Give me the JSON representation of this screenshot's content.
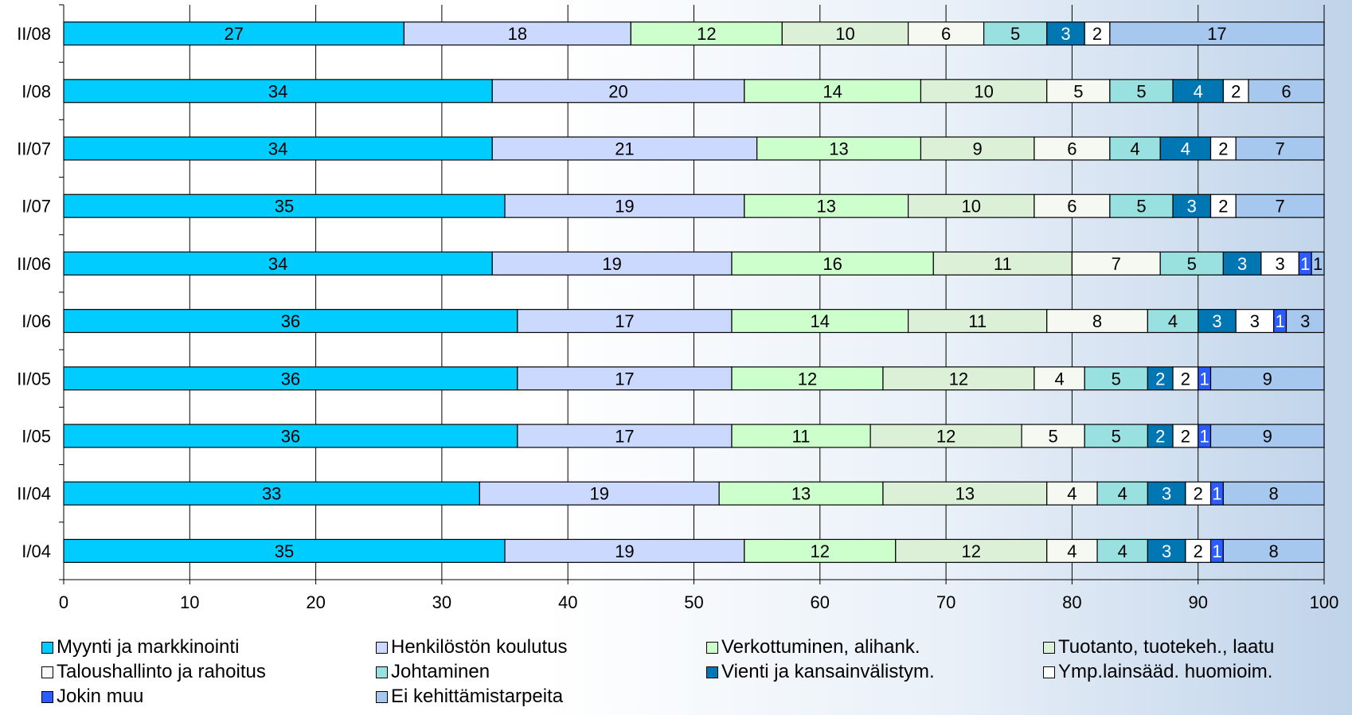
{
  "chart_data": {
    "type": "bar",
    "orientation": "horizontal",
    "stacked": true,
    "categories": [
      "I/04",
      "II/04",
      "I/05",
      "II/05",
      "I/06",
      "II/06",
      "I/07",
      "II/07",
      "I/08",
      "II/08"
    ],
    "xlim": [
      0,
      100
    ],
    "xticks": [
      "0",
      "10",
      "20",
      "30",
      "40",
      "50",
      "60",
      "70",
      "80",
      "90",
      "100"
    ],
    "grid": "vertical",
    "legend_position": "bottom",
    "series": [
      {
        "name": "Myynti ja markkinointi",
        "color": "#00ccff",
        "values": [
          35,
          33,
          36,
          36,
          36,
          34,
          35,
          34,
          34,
          27
        ],
        "labels": [
          "35",
          "33",
          "36",
          "36",
          "36",
          "34",
          "35",
          "34",
          "34",
          "27"
        ]
      },
      {
        "name": "Henkilöstön koulutus",
        "color": "#ccd9ff",
        "values": [
          19,
          19,
          17,
          17,
          17,
          19,
          19,
          21,
          20,
          18
        ],
        "labels": [
          "19",
          "19",
          "17",
          "17",
          "17",
          "19",
          "19",
          "21",
          "20",
          "18"
        ]
      },
      {
        "name": "Verkottuminen, alihank.",
        "color": "#ccffcc",
        "values": [
          12,
          13,
          11,
          12,
          14,
          16,
          13,
          13,
          14,
          12
        ],
        "labels": [
          "12",
          "13",
          "11",
          "12",
          "14",
          "16",
          "13",
          "13",
          "14",
          "12"
        ]
      },
      {
        "name": "Tuotanto, tuotekeh., laatu",
        "color": "#dbf0d7",
        "values": [
          12,
          13,
          12,
          12,
          11,
          11,
          10,
          9,
          10,
          10
        ],
        "labels": [
          "12",
          "13",
          "12",
          "12",
          "11",
          "11",
          "10",
          "9",
          "10",
          "10"
        ]
      },
      {
        "name": "Taloushallinto ja rahoitus",
        "color": "#f6f9f2",
        "values": [
          4,
          4,
          5,
          4,
          8,
          7,
          6,
          6,
          5,
          6
        ],
        "labels": [
          "4",
          "4",
          "5",
          "4",
          "8",
          "7",
          "6",
          "6",
          "5",
          "6"
        ]
      },
      {
        "name": "Johtaminen",
        "color": "#99e0e0",
        "values": [
          4,
          4,
          5,
          5,
          4,
          5,
          5,
          4,
          5,
          5
        ],
        "labels": [
          "4",
          "4",
          "5",
          "5",
          "4",
          "5",
          "5",
          "4",
          "5",
          "5"
        ]
      },
      {
        "name": "Vienti ja kansainvälistym.",
        "color": "#0077b3",
        "values": [
          3,
          3,
          2,
          2,
          3,
          3,
          3,
          4,
          4,
          3
        ],
        "labels": [
          "3",
          "3",
          "2",
          "2",
          "3",
          "3",
          "3",
          "4",
          "4",
          "3"
        ]
      },
      {
        "name": "Ymp.lainsääd. huomioim.",
        "color": "#ffffff",
        "values": [
          2,
          2,
          2,
          2,
          3,
          3,
          2,
          2,
          2,
          2
        ],
        "labels": [
          "2",
          "2",
          "2",
          "2",
          "3",
          "3",
          "2",
          "2",
          "2",
          "2"
        ]
      },
      {
        "name": "Jokin muu",
        "color": "#2a5cff",
        "values": [
          1,
          1,
          1,
          1,
          1,
          1,
          0,
          0,
          0,
          0
        ],
        "labels": [
          "1",
          "1",
          "1",
          "1",
          "1",
          "1",
          "0",
          "0",
          "0",
          "0"
        ]
      },
      {
        "name": "Ei kehittämistarpeita",
        "color": "#a6c8ee",
        "values": [
          8,
          8,
          9,
          9,
          3,
          1,
          7,
          7,
          6,
          17
        ],
        "labels": [
          "8",
          "8",
          "9",
          "9",
          "3",
          "1",
          "7",
          "7",
          "6",
          "17"
        ]
      }
    ]
  }
}
